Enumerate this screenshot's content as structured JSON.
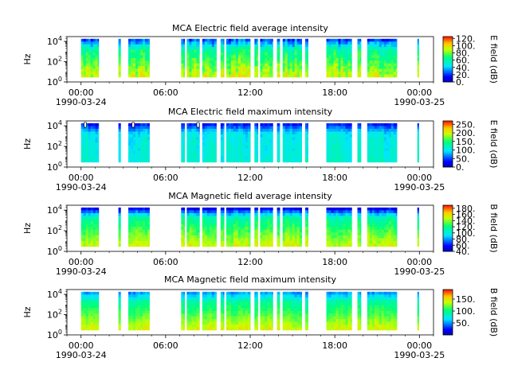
{
  "chart_data": [
    {
      "type": "heatmap",
      "title": "MCA  Electric field average intensity",
      "ylabel": "Hz",
      "y_scale": "log",
      "ylim": [
        1,
        30000
      ],
      "y_ticks": [
        {
          "base": "10",
          "exp": "0"
        },
        {
          "base": "10",
          "exp": "2"
        },
        {
          "base": "10",
          "exp": "4"
        }
      ],
      "x_range_hours": [
        -1,
        25
      ],
      "x_ticks": [
        {
          "h": 0,
          "label": "00:00"
        },
        {
          "h": 6,
          "label": "06:00"
        },
        {
          "h": 12,
          "label": "12:00"
        },
        {
          "h": 18,
          "label": "18:00"
        },
        {
          "h": 24,
          "label": "00:00"
        }
      ],
      "date_labels": [
        {
          "h": 0,
          "label": "1990-03-24"
        },
        {
          "h": 24,
          "label": "1990-03-25"
        }
      ],
      "colorbar": {
        "label": "E field (dB)",
        "min": 0,
        "max": 125,
        "ticks": [
          "0.",
          "20.",
          "40.",
          "60.",
          "80.",
          "100.",
          "120."
        ],
        "tick_values": [
          0,
          20,
          40,
          60,
          80,
          100,
          120
        ]
      },
      "intensity": {
        "base": 70,
        "low_freq_boost": 30,
        "high_freq_drop": 25,
        "spread": 15
      },
      "saturated": []
    },
    {
      "type": "heatmap",
      "title": "MCA  Electric field maximum intensity",
      "ylabel": "Hz",
      "y_scale": "log",
      "ylim": [
        1,
        30000
      ],
      "y_ticks": [
        {
          "base": "10",
          "exp": "0"
        },
        {
          "base": "10",
          "exp": "2"
        },
        {
          "base": "10",
          "exp": "4"
        }
      ],
      "x_range_hours": [
        -1,
        25
      ],
      "x_ticks": [
        {
          "h": 0,
          "label": "00:00"
        },
        {
          "h": 6,
          "label": "06:00"
        },
        {
          "h": 12,
          "label": "12:00"
        },
        {
          "h": 18,
          "label": "18:00"
        },
        {
          "h": 24,
          "label": "00:00"
        }
      ],
      "date_labels": [
        {
          "h": 0,
          "label": "1990-03-24"
        },
        {
          "h": 24,
          "label": "1990-03-25"
        }
      ],
      "colorbar": {
        "label": "E field (dB)",
        "min": 0,
        "max": 270,
        "ticks": [
          "0.",
          "50.",
          "100.",
          "150.",
          "200.",
          "250."
        ],
        "tick_values": [
          0,
          50,
          100,
          150,
          200,
          250
        ]
      },
      "intensity": {
        "base": 105,
        "low_freq_boost": 10,
        "high_freq_drop": 60,
        "spread": 20
      },
      "saturated": [
        0.3,
        3.7,
        8.3
      ]
    },
    {
      "type": "heatmap",
      "title": "MCA  Magnetic field average intensity",
      "ylabel": "Hz",
      "y_scale": "log",
      "ylim": [
        1,
        30000
      ],
      "y_ticks": [
        {
          "base": "10",
          "exp": "0"
        },
        {
          "base": "10",
          "exp": "2"
        },
        {
          "base": "10",
          "exp": "4"
        }
      ],
      "x_range_hours": [
        -1,
        25
      ],
      "x_ticks": [
        {
          "h": 0,
          "label": "00:00"
        },
        {
          "h": 6,
          "label": "06:00"
        },
        {
          "h": 12,
          "label": "12:00"
        },
        {
          "h": 18,
          "label": "18:00"
        },
        {
          "h": 24,
          "label": "00:00"
        }
      ],
      "date_labels": [
        {
          "h": 0,
          "label": "1990-03-24"
        },
        {
          "h": 24,
          "label": "1990-03-25"
        }
      ],
      "colorbar": {
        "label": "B field (dB)",
        "min": 40,
        "max": 190,
        "ticks": [
          "40.",
          "60.",
          "80.",
          "100.",
          "120.",
          "140.",
          "160.",
          "180."
        ],
        "tick_values": [
          40,
          60,
          80,
          100,
          120,
          140,
          160,
          180
        ]
      },
      "intensity": {
        "base": 125,
        "low_freq_boost": 35,
        "high_freq_drop": 45,
        "spread": 12
      },
      "saturated": []
    },
    {
      "type": "heatmap",
      "title": "MCA  Magnetic field maximum intensity",
      "ylabel": "Hz",
      "y_scale": "log",
      "ylim": [
        1,
        30000
      ],
      "y_ticks": [
        {
          "base": "10",
          "exp": "0"
        },
        {
          "base": "10",
          "exp": "2"
        },
        {
          "base": "10",
          "exp": "4"
        }
      ],
      "x_range_hours": [
        -1,
        25
      ],
      "x_ticks": [
        {
          "h": 0,
          "label": "00:00"
        },
        {
          "h": 6,
          "label": "06:00"
        },
        {
          "h": 12,
          "label": "12:00"
        },
        {
          "h": 18,
          "label": "18:00"
        },
        {
          "h": 24,
          "label": "00:00"
        }
      ],
      "date_labels": [
        {
          "h": 0,
          "label": "1990-03-24"
        },
        {
          "h": 24,
          "label": "1990-03-25"
        }
      ],
      "colorbar": {
        "label": "B field (dB)",
        "min": 0,
        "max": 190,
        "ticks": [
          "50.",
          "100.",
          "150."
        ],
        "tick_values": [
          50,
          100,
          150
        ]
      },
      "intensity": {
        "base": 110,
        "low_freq_boost": 45,
        "high_freq_drop": 25,
        "spread": 12
      },
      "saturated": []
    }
  ],
  "data_intervals_hours": [
    [
      0.0,
      1.25
    ],
    [
      2.65,
      2.8
    ],
    [
      3.35,
      4.85
    ],
    [
      7.1,
      7.35
    ],
    [
      7.5,
      8.4
    ],
    [
      8.6,
      9.6
    ],
    [
      9.9,
      10.15
    ],
    [
      10.3,
      12.0
    ],
    [
      12.3,
      12.55
    ],
    [
      12.7,
      13.6
    ],
    [
      13.9,
      14.1
    ],
    [
      14.3,
      15.65
    ],
    [
      15.9,
      16.1
    ],
    [
      17.4,
      19.2
    ],
    [
      19.6,
      19.85
    ],
    [
      20.3,
      22.4
    ],
    [
      23.85,
      23.95
    ]
  ]
}
